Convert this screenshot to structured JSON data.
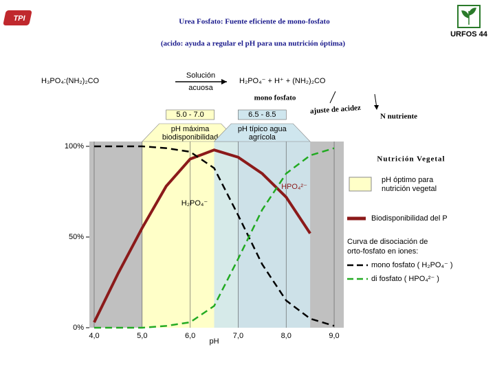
{
  "header": {
    "logo_left": "TPI",
    "title": "Urea Fosfato: Fuente eficiente de mono-fosfato",
    "subtitle": "(acido: ayuda a regular el pH para una nutrición óptima)",
    "logo_right": "URFOS 44"
  },
  "reaction": {
    "reactant": "H₃PO₄:(NH₂)₂CO",
    "condition": [
      "Solución",
      "acuosa"
    ],
    "products": "H₂PO₄⁻ + H⁺ + (NH₂)₂CO",
    "notes": [
      "mono fosfato",
      "ajuste de acidez",
      "N nutriente"
    ]
  },
  "chart_data": {
    "type": "line",
    "title": "Nutrición Vegetal",
    "x_label": "pH",
    "xlim": [
      3.9,
      9.2
    ],
    "ylim": [
      0,
      100
    ],
    "xticks": [
      {
        "value": 4,
        "label": "4,0"
      },
      {
        "value": 5,
        "label": "5,0"
      },
      {
        "value": 6,
        "label": "6,0"
      },
      {
        "value": 7,
        "label": "7,0"
      },
      {
        "value": 8,
        "label": "8,0"
      },
      {
        "value": 9,
        "label": "9,0"
      }
    ],
    "yticks": [
      {
        "value": 0,
        "label": "0%"
      },
      {
        "value": 50,
        "label": "50%"
      },
      {
        "value": 100,
        "label": "100%"
      }
    ],
    "grid": true,
    "background": "#c0c0c0",
    "ranges": [
      {
        "label": "5.0 - 7.0",
        "note": [
          "pH máxima",
          "biodisponibilidad"
        ],
        "from": 5,
        "to": 7,
        "color": "#ffffc8"
      },
      {
        "label": "6.5 - 8.5",
        "note": [
          "pH típico agua",
          "agrícola"
        ],
        "from": 6.5,
        "to": 8.5,
        "color": "#cfe6ee"
      }
    ],
    "range_legend": [
      "pH óptimo para",
      "nutrición vegetal"
    ],
    "curve_legend_heading": [
      "Curva de disociación de",
      "orto-fosfato en iones:"
    ],
    "curve_labels": [
      "H₂PO₄⁻",
      "HPO₄²⁻"
    ],
    "series": [
      {
        "name": "Biodisponibilidad del P",
        "color": "#8b1a1a",
        "dash": false,
        "x": [
          4.0,
          4.5,
          5.0,
          5.5,
          6.0,
          6.5,
          7.0,
          7.5,
          8.0,
          8.5
        ],
        "values": [
          3,
          30,
          55,
          78,
          93,
          98,
          94,
          85,
          72,
          52
        ]
      },
      {
        "name": "mono fosfato ( H₂PO₄⁻ )",
        "color": "#000000",
        "dash": true,
        "x": [
          4.0,
          4.5,
          5.0,
          5.5,
          6.0,
          6.5,
          7.0,
          7.5,
          8.0,
          8.5,
          9.0
        ],
        "values": [
          100,
          100,
          100,
          99,
          97,
          88,
          62,
          35,
          15,
          5,
          1
        ]
      },
      {
        "name": "di fosfato ( HPO₄²⁻ )",
        "color": "#22aa22",
        "dash": true,
        "x": [
          4.0,
          4.5,
          5.0,
          5.5,
          6.0,
          6.5,
          7.0,
          7.5,
          8.0,
          8.5,
          9.0
        ],
        "values": [
          0,
          0,
          0,
          1,
          3,
          12,
          38,
          65,
          85,
          95,
          99
        ]
      }
    ]
  }
}
